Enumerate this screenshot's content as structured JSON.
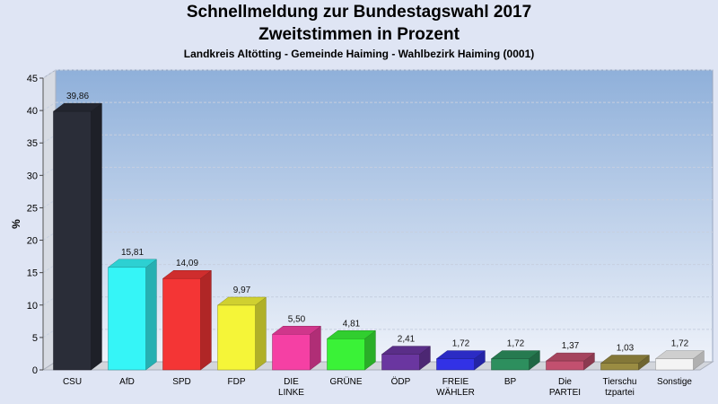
{
  "header": {
    "title": "Schnellmeldung zur Bundestagswahl 2017",
    "subtitle": "Zweitstimmen in Prozent",
    "location": "Landkreis Altötting - Gemeinde Haiming - Wahlbezirk Haiming (0001)"
  },
  "chart_data": {
    "type": "bar",
    "title": "Schnellmeldung zur Bundestagswahl 2017",
    "subtitle": "Zweitstimmen in Prozent",
    "ylabel": "%",
    "xlabel": "",
    "ylim": [
      0,
      45
    ],
    "yticks": [
      0,
      5,
      10,
      15,
      20,
      25,
      30,
      35,
      40,
      45
    ],
    "grid": true,
    "categories": [
      [
        "CSU"
      ],
      [
        "AfD"
      ],
      [
        "SPD"
      ],
      [
        "FDP"
      ],
      [
        "DIE",
        "LINKE"
      ],
      [
        "GRÜNE"
      ],
      [
        "ÖDP"
      ],
      [
        "FREIE",
        "WÄHLER"
      ],
      [
        "BP"
      ],
      [
        "Die",
        "PARTEI"
      ],
      [
        "Tierschu",
        "tzpartei"
      ],
      [
        "Sonstige"
      ]
    ],
    "values": [
      39.86,
      15.81,
      14.09,
      9.97,
      5.5,
      4.81,
      2.41,
      1.72,
      1.72,
      1.37,
      1.03,
      1.72
    ],
    "value_labels": [
      "39,86",
      "15,81",
      "14,09",
      "9,97",
      "5,50",
      "4,81",
      "2,41",
      "1,72",
      "1,72",
      "1,37",
      "1,03",
      "1,72"
    ],
    "colors": [
      "#2a2d38",
      "#35f5f7",
      "#f43535",
      "#f5f538",
      "#f540a4",
      "#3af237",
      "#6a36a0",
      "#3232e6",
      "#2d8f5e",
      "#c2506f",
      "#9a8c42",
      "#f4f4f4"
    ]
  }
}
